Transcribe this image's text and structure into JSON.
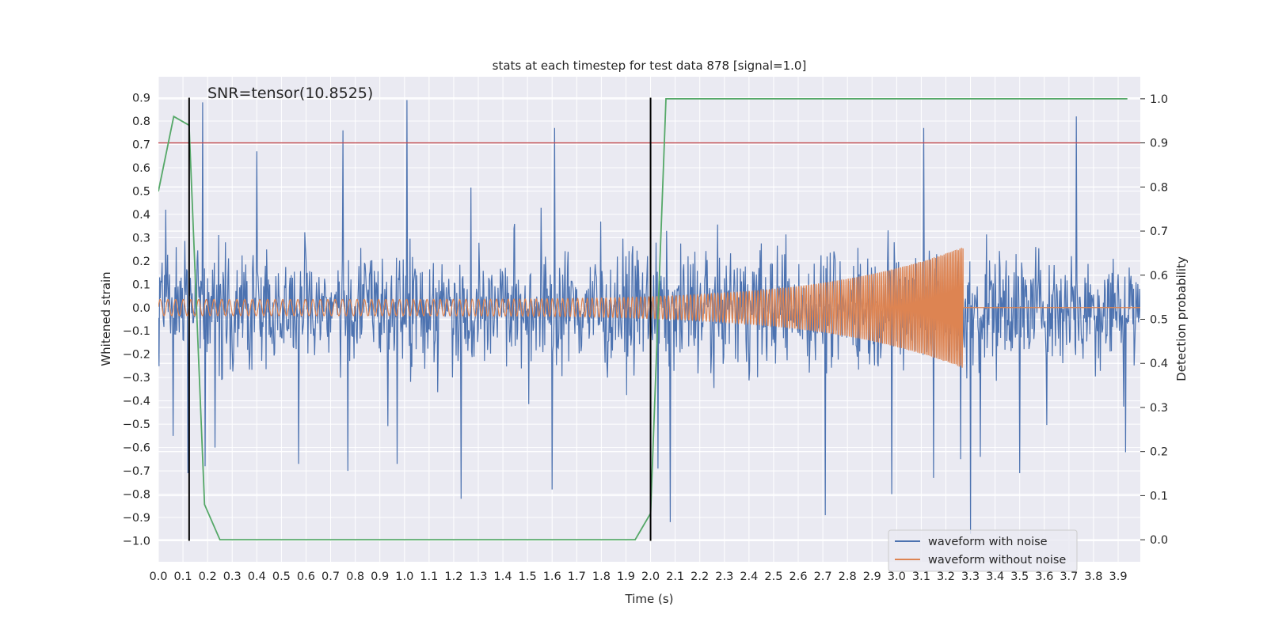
{
  "chart_data": {
    "type": "line",
    "title": "stats at each timestep for test data 878 [signal=1.0]",
    "xlabel": "Time (s)",
    "ylabel": "Whitened strain",
    "y2label": "Detection probability",
    "annotation": "SNR=tensor(10.8525)",
    "xlim": [
      0.0,
      3.99
    ],
    "ylim": [
      -1.09,
      0.99
    ],
    "y2lim": [
      -0.05,
      1.05
    ],
    "x_ticks": [
      "0.0",
      "0.1",
      "0.2",
      "0.3",
      "0.4",
      "0.5",
      "0.6",
      "0.7",
      "0.8",
      "0.9",
      "1.0",
      "1.1",
      "1.2",
      "1.3",
      "1.4",
      "1.5",
      "1.6",
      "1.7",
      "1.8",
      "1.9",
      "2.0",
      "2.1",
      "2.2",
      "2.3",
      "2.4",
      "2.5",
      "2.6",
      "2.7",
      "2.8",
      "2.9",
      "3.0",
      "3.1",
      "3.2",
      "3.3",
      "3.4",
      "3.5",
      "3.6",
      "3.7",
      "3.8",
      "3.9"
    ],
    "y_ticks": [
      "0.9",
      "0.8",
      "0.7",
      "0.6",
      "0.5",
      "0.4",
      "0.3",
      "0.2",
      "0.1",
      "0.0",
      "−0.1",
      "−0.2",
      "−0.3",
      "−0.4",
      "−0.5",
      "−0.6",
      "−0.7",
      "−0.8",
      "−0.9",
      "−1.0"
    ],
    "y2_ticks": [
      "1.0",
      "0.9",
      "0.8",
      "0.7",
      "0.6",
      "0.5",
      "0.4",
      "0.3",
      "0.2",
      "0.1",
      "0.0"
    ],
    "threshold": {
      "y2": 0.9,
      "color": "#c44e52"
    },
    "vertical_markers": [
      {
        "x": 0.125,
        "y_from": -1.0,
        "y_to": 0.9
      },
      {
        "x": 2.0,
        "y_from": -1.0,
        "y_to": 0.9
      }
    ],
    "series": [
      {
        "name": "waveform with noise",
        "color": "#4c72b0",
        "kind": "noise",
        "amplitude_typical": 0.3,
        "spikes": [
          [
            0.03,
            0.42
          ],
          [
            0.06,
            -0.55
          ],
          [
            0.18,
            0.88
          ],
          [
            0.19,
            -0.68
          ],
          [
            0.12,
            -0.71
          ],
          [
            0.23,
            -0.6
          ],
          [
            0.4,
            0.67
          ],
          [
            0.57,
            -0.67
          ],
          [
            0.75,
            0.76
          ],
          [
            0.77,
            -0.7
          ],
          [
            0.97,
            -0.67
          ],
          [
            1.01,
            0.89
          ],
          [
            1.23,
            -0.82
          ],
          [
            1.61,
            0.77
          ],
          [
            1.6,
            -0.78
          ],
          [
            2.03,
            -0.69
          ],
          [
            2.08,
            -0.92
          ],
          [
            2.71,
            -0.89
          ],
          [
            2.98,
            -0.8
          ],
          [
            3.11,
            0.77
          ],
          [
            3.15,
            -0.73
          ],
          [
            3.26,
            -0.65
          ],
          [
            3.3,
            -0.97
          ],
          [
            3.34,
            -0.64
          ],
          [
            3.5,
            -0.71
          ],
          [
            3.73,
            0.82
          ],
          [
            3.93,
            -0.62
          ]
        ]
      },
      {
        "name": "waveform without noise",
        "color": "#dd8452",
        "kind": "chirp",
        "amp_start": 0.035,
        "amp_end": 0.26,
        "freq_start": 32,
        "freq_end": 160,
        "merger_time": 3.27
      },
      {
        "name": "Detection probability",
        "color": "#55a868",
        "axis": "y2",
        "x": [
          0.0,
          0.0625,
          0.125,
          0.1875,
          0.25,
          1.9375,
          2.0,
          2.0625,
          2.125,
          3.9375
        ],
        "values": [
          0.79,
          0.96,
          0.94,
          0.08,
          0.0,
          0.0,
          0.06,
          1.0,
          1.0,
          1.0
        ]
      }
    ],
    "legend": {
      "position": "lower-right",
      "entries": [
        "waveform with noise",
        "waveform without noise"
      ]
    }
  }
}
